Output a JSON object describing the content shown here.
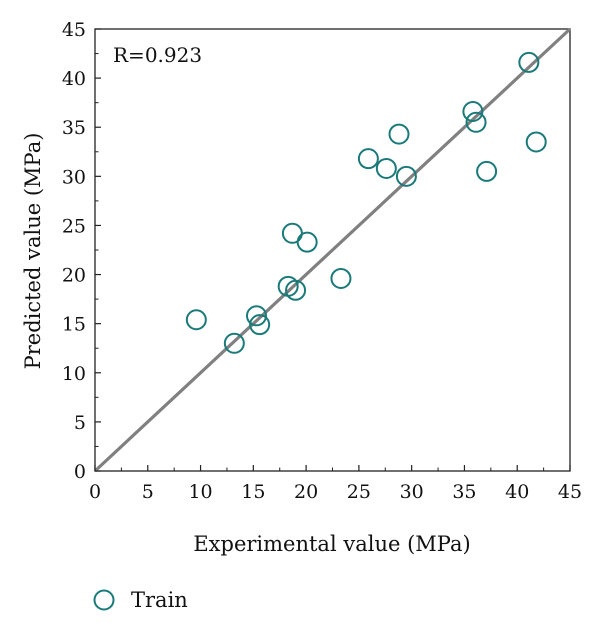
{
  "chart_data": {
    "type": "scatter",
    "xlabel": "Experimental value (MPa)",
    "ylabel": "Predicted value (MPa)",
    "xlim": [
      0,
      45
    ],
    "ylim": [
      0,
      45
    ],
    "x_ticks": [
      0,
      5,
      10,
      15,
      20,
      25,
      30,
      35,
      40,
      45
    ],
    "y_ticks": [
      0,
      5,
      10,
      15,
      20,
      25,
      30,
      35,
      40,
      45
    ],
    "annotation": "R=0.923",
    "grid": false,
    "legend_position": "bottom-left",
    "reference_line": {
      "from": [
        0,
        0
      ],
      "to": [
        45,
        45
      ],
      "color": "#808080"
    },
    "series": [
      {
        "name": "Train",
        "marker": "open-circle",
        "color": "#1a7a7a",
        "x": [
          9.6,
          13.2,
          15.3,
          15.6,
          18.3,
          18.7,
          19.0,
          20.1,
          23.3,
          25.9,
          27.6,
          28.8,
          29.5,
          35.8,
          36.1,
          37.1,
          41.1,
          41.8
        ],
        "y": [
          15.4,
          13.0,
          15.8,
          14.9,
          18.8,
          24.2,
          18.4,
          23.3,
          19.6,
          31.8,
          30.8,
          34.3,
          30.0,
          36.6,
          35.5,
          30.5,
          41.6,
          33.5
        ]
      }
    ]
  }
}
